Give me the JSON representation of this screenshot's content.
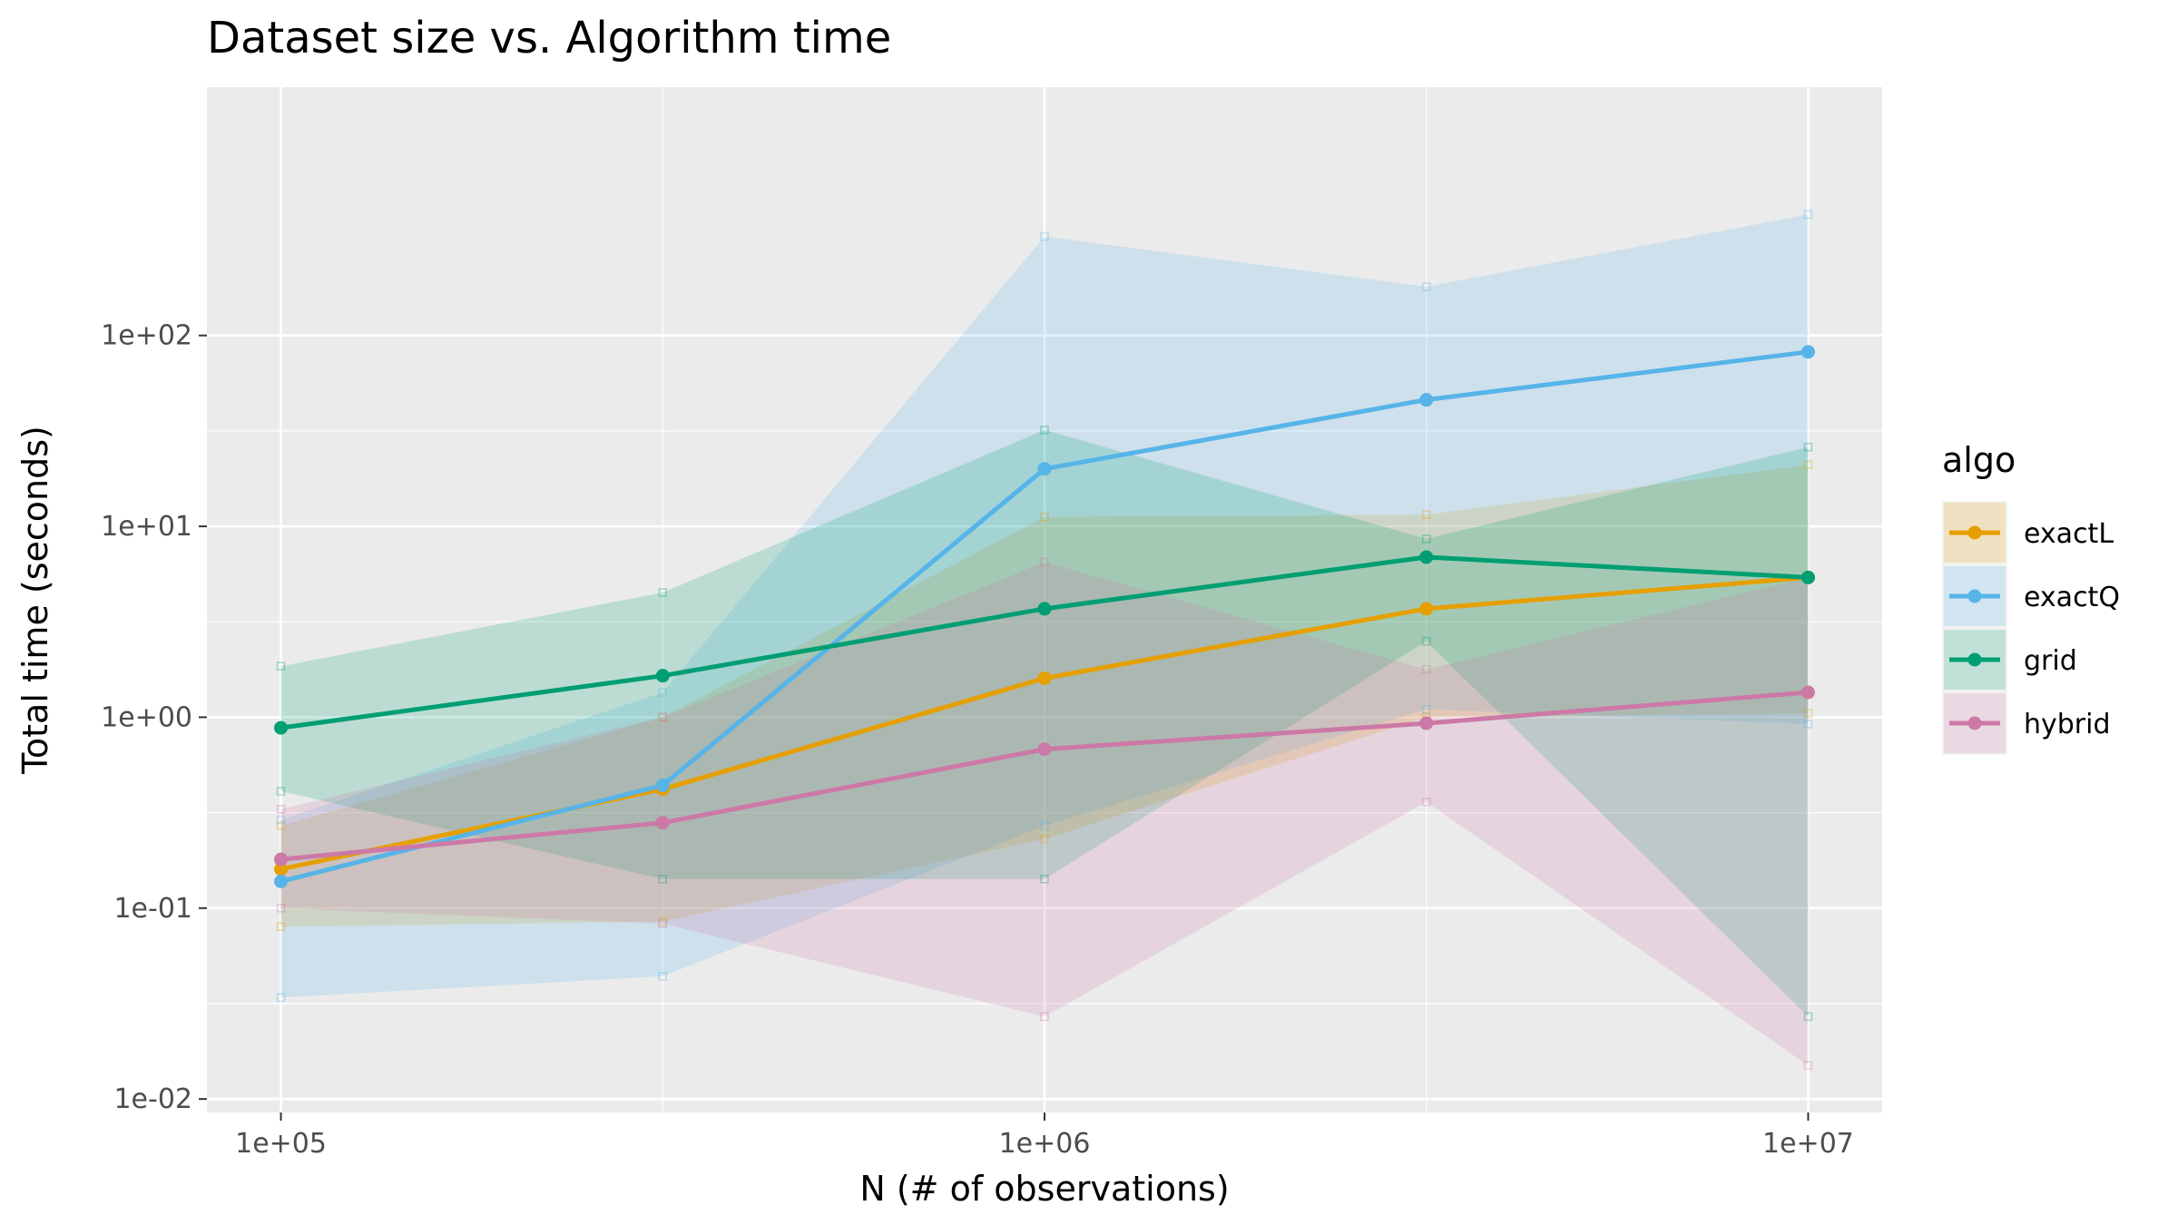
{
  "chart_data": {
    "type": "line",
    "title": "Dataset size vs. Algorithm time",
    "xlabel": "N (# of observations)",
    "ylabel": "Total time (seconds)",
    "x_scale": "log10",
    "y_scale": "log10",
    "xlim": [
      80000,
      12500000
    ],
    "ylim": [
      0.0085,
      2000
    ],
    "x": [
      100000,
      316228,
      1000000,
      3162278,
      10000000
    ],
    "x_ticks": [
      {
        "value": 100000,
        "label": "1e+05"
      },
      {
        "value": 1000000,
        "label": "1e+06"
      },
      {
        "value": 10000000,
        "label": "1e+07"
      }
    ],
    "y_ticks": [
      {
        "value": 0.01,
        "label": "1e-02"
      },
      {
        "value": 0.1,
        "label": "1e-01"
      },
      {
        "value": 1,
        "label": "1e+00"
      },
      {
        "value": 10,
        "label": "1e+01"
      },
      {
        "value": 100,
        "label": "1e+02"
      }
    ],
    "grid": true,
    "legend": {
      "title": "algo",
      "position": "right"
    },
    "series": [
      {
        "name": "exactL",
        "color": "#E69F00",
        "values": [
          0.16,
          0.42,
          1.6,
          3.7,
          5.4
        ],
        "lower": [
          0.08,
          0.085,
          0.23,
          1.0,
          1.05
        ],
        "upper": [
          0.27,
          1.0,
          11.2,
          11.5,
          21.0
        ]
      },
      {
        "name": "exactQ",
        "color": "#56B4E9",
        "values": [
          0.138,
          0.44,
          20.0,
          46.0,
          82.0
        ],
        "lower": [
          0.034,
          0.044,
          0.27,
          1.1,
          0.92
        ],
        "upper": [
          0.29,
          1.35,
          330.0,
          180.0,
          430.0
        ]
      },
      {
        "name": "grid",
        "color": "#009E73",
        "values": [
          0.88,
          1.65,
          3.7,
          6.9,
          5.4
        ],
        "lower": [
          0.41,
          0.142,
          0.142,
          2.5,
          0.027
        ],
        "upper": [
          1.85,
          4.5,
          32.0,
          8.6,
          26.0
        ]
      },
      {
        "name": "hybrid",
        "color": "#CC79A7",
        "values": [
          0.18,
          0.28,
          0.68,
          0.93,
          1.35
        ],
        "lower": [
          0.1,
          0.083,
          0.027,
          0.36,
          0.015
        ],
        "upper": [
          0.33,
          1.0,
          6.5,
          1.78,
          5.4
        ]
      }
    ]
  }
}
